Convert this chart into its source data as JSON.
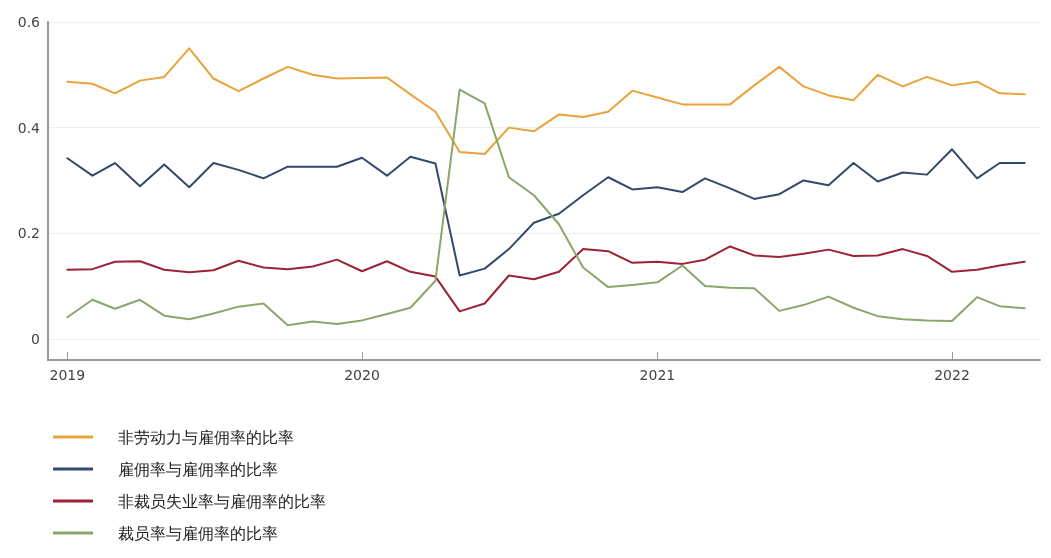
{
  "chart_data": {
    "type": "line",
    "x": [
      "2019-01",
      "2019-02",
      "2019-03",
      "2019-04",
      "2019-05",
      "2019-06",
      "2019-07",
      "2019-08",
      "2019-09",
      "2019-10",
      "2019-11",
      "2019-12",
      "2020-01",
      "2020-02",
      "2020-03",
      "2020-04",
      "2020-05",
      "2020-06",
      "2020-07",
      "2020-08",
      "2020-09",
      "2020-10",
      "2020-11",
      "2020-12",
      "2021-01",
      "2021-02",
      "2021-03",
      "2021-04",
      "2021-05",
      "2021-06",
      "2021-07",
      "2021-08",
      "2021-09",
      "2021-10",
      "2021-11",
      "2021-12",
      "2022-01",
      "2022-02",
      "2022-03",
      "2022-04"
    ],
    "series": [
      {
        "name": "非劳动力与雇佣率的比率",
        "color": "#e8a33d",
        "values": [
          0.487,
          0.483,
          0.465,
          0.489,
          0.496,
          0.55,
          0.493,
          0.469,
          0.493,
          0.515,
          0.5,
          0.493,
          0.494,
          0.495,
          0.463,
          0.43,
          0.354,
          0.35,
          0.4,
          0.393,
          0.425,
          0.42,
          0.43,
          0.47,
          0.457,
          0.444,
          0.444,
          0.444,
          0.48,
          0.515,
          0.478,
          0.461,
          0.452,
          0.5,
          0.478,
          0.496,
          0.48,
          0.487,
          0.465,
          0.463
        ]
      },
      {
        "name": "雇佣率与雇佣率的比率",
        "color": "#34496a",
        "values": [
          0.342,
          0.309,
          0.333,
          0.289,
          0.33,
          0.287,
          0.333,
          0.32,
          0.304,
          0.326,
          0.326,
          0.326,
          0.343,
          0.309,
          0.345,
          0.332,
          0.12,
          0.133,
          0.17,
          0.22,
          0.237,
          0.272,
          0.306,
          0.283,
          0.287,
          0.278,
          0.304,
          0.285,
          0.265,
          0.274,
          0.3,
          0.291,
          0.333,
          0.298,
          0.315,
          0.311,
          0.359,
          0.304,
          0.333,
          0.333
        ]
      },
      {
        "name": "非裁员失业率与雇佣率的比率",
        "color": "#9b2335",
        "values": [
          0.131,
          0.132,
          0.146,
          0.147,
          0.131,
          0.126,
          0.13,
          0.148,
          0.135,
          0.132,
          0.137,
          0.15,
          0.128,
          0.147,
          0.127,
          0.118,
          0.052,
          0.067,
          0.12,
          0.113,
          0.127,
          0.17,
          0.166,
          0.144,
          0.146,
          0.142,
          0.15,
          0.175,
          0.158,
          0.155,
          0.161,
          0.169,
          0.157,
          0.158,
          0.17,
          0.157,
          0.127,
          0.131,
          0.139,
          0.146
        ]
      },
      {
        "name": "裁员率与雇佣率的比率",
        "color": "#8aa66a",
        "values": [
          0.041,
          0.074,
          0.057,
          0.074,
          0.044,
          0.037,
          0.048,
          0.061,
          0.067,
          0.026,
          0.033,
          0.028,
          0.035,
          0.047,
          0.059,
          0.11,
          0.472,
          0.446,
          0.306,
          0.272,
          0.217,
          0.135,
          0.098,
          0.102,
          0.107,
          0.139,
          0.1,
          0.097,
          0.096,
          0.053,
          0.064,
          0.08,
          0.059,
          0.043,
          0.037,
          0.035,
          0.034,
          0.079,
          0.062,
          0.058
        ]
      }
    ],
    "xlim": [
      "2018-12-08",
      "2022-04-20"
    ],
    "xticks": [
      "2019",
      "2020",
      "2021",
      "2022"
    ],
    "ylim": [
      -0.04,
      0.6
    ],
    "yticks": [
      0,
      0.2,
      0.4,
      0.6
    ],
    "grid": "y",
    "legend": "bottom",
    "marker": "none",
    "line_style": "solid"
  }
}
